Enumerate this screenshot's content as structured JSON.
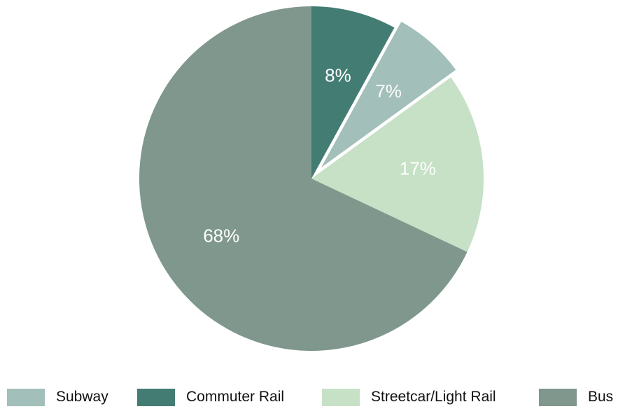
{
  "chart_data": {
    "type": "pie",
    "title": "",
    "slices": [
      {
        "name": "Commuter Rail",
        "value": 8,
        "label": "8%",
        "color": "#437c73",
        "exploded": false
      },
      {
        "name": "Subway",
        "value": 7,
        "label": "7%",
        "color": "#a2bfb9",
        "exploded": true
      },
      {
        "name": "Streetcar/Light Rail",
        "value": 17,
        "label": "17%",
        "color": "#c6e1c6",
        "exploded": false
      },
      {
        "name": "Bus",
        "value": 68,
        "label": "68%",
        "color": "#7f978d",
        "exploded": false
      }
    ],
    "legend": {
      "placement": "bottom",
      "items": [
        {
          "name": "Subway",
          "color": "#a2bfb9"
        },
        {
          "name": "Commuter Rail",
          "color": "#437c73"
        },
        {
          "name": "Streetcar/Light Rail",
          "color": "#c6e1c6"
        },
        {
          "name": "Bus",
          "color": "#7f978d"
        }
      ]
    }
  }
}
